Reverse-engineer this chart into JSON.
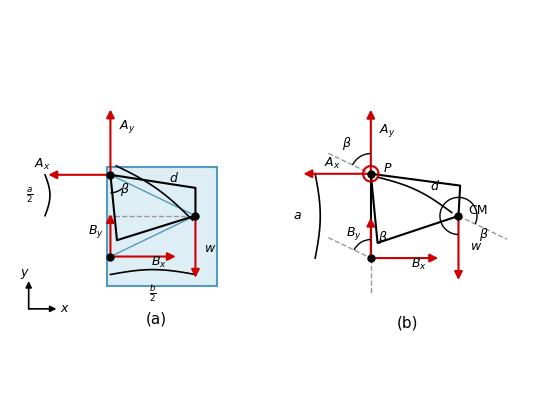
{
  "fig_bg": "#ffffff",
  "arrow_color": "#cc0000",
  "line_color": "#000000",
  "door_fill": "#ddeef5",
  "door_edge": "#5599bb",
  "dashed_color": "#999999",
  "beta_color": "#5599bb",
  "label_color": "#000000",
  "A": [
    0.0,
    0.0
  ],
  "B": [
    0.0,
    -0.5
  ],
  "CM": [
    0.52,
    -0.25
  ],
  "P": [
    0.0,
    0.0
  ],
  "B2": [
    0.0,
    -0.5
  ],
  "CM2": [
    0.52,
    -0.25
  ]
}
